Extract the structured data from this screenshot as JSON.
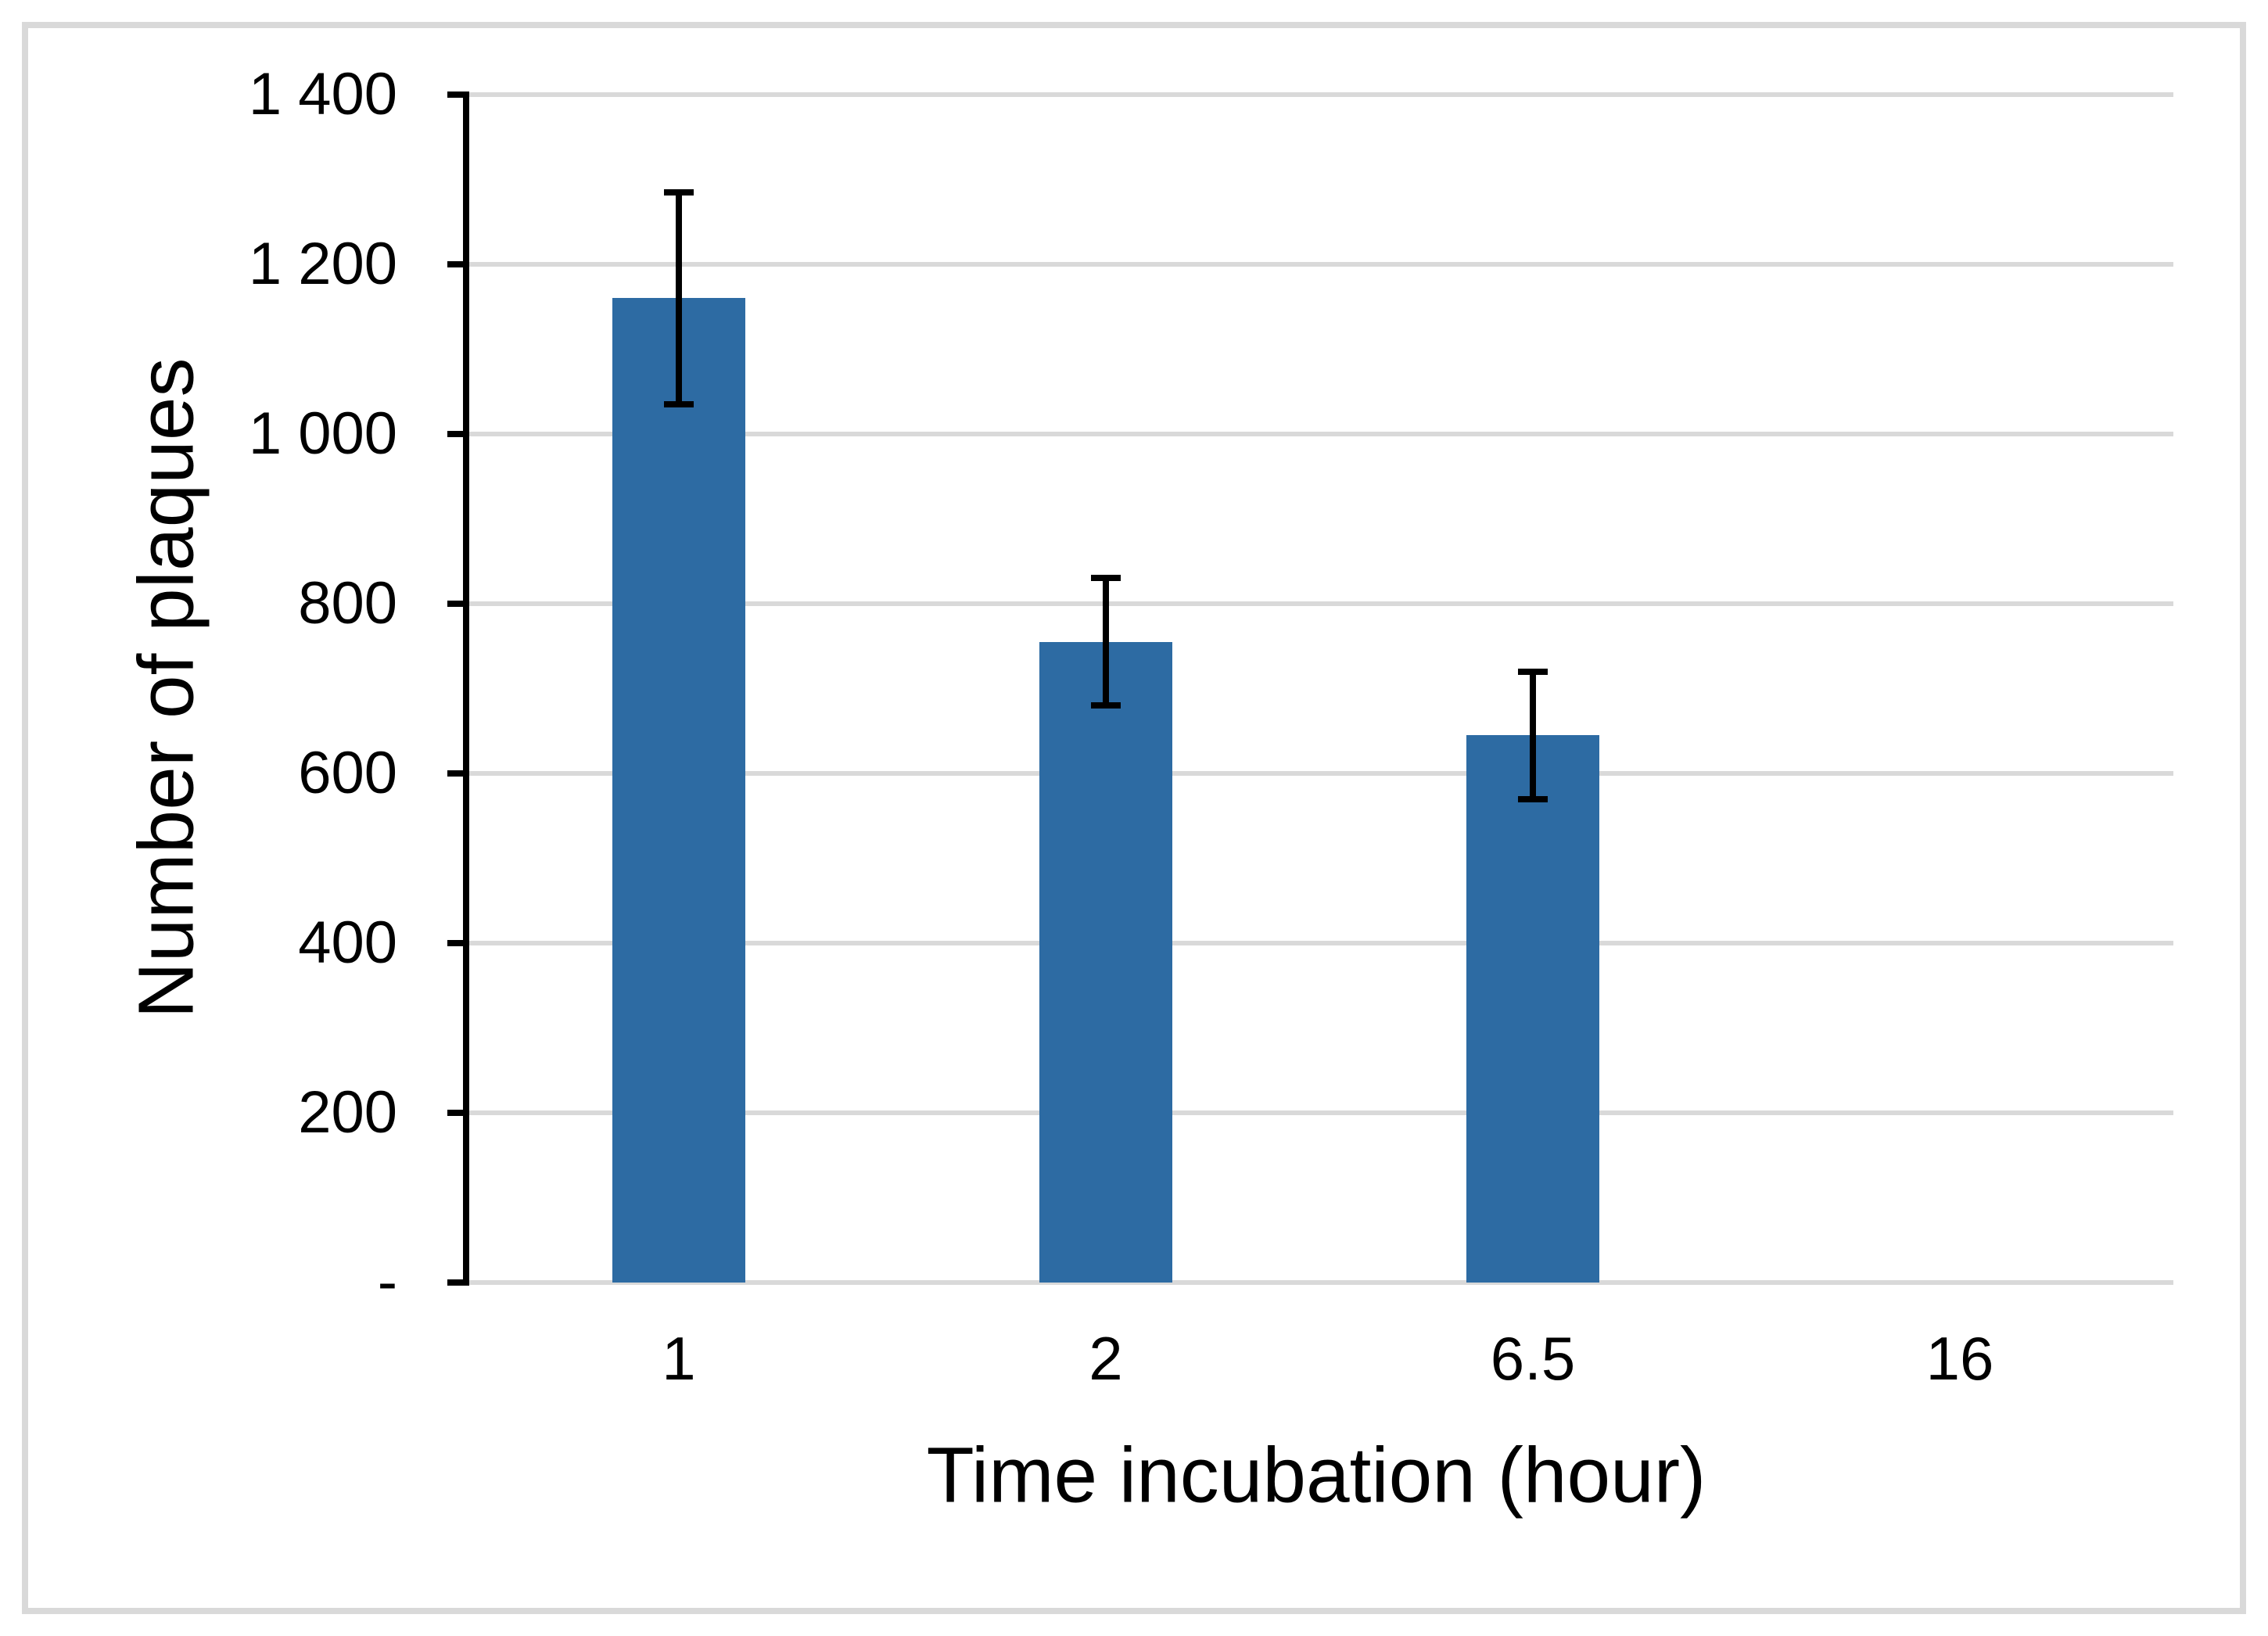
{
  "figure": {
    "background": "#FFFFFF",
    "frame_color": "#D9D9D9"
  },
  "chart_data": {
    "type": "bar",
    "title": "",
    "xlabel": "Time incubation (hour)",
    "ylabel": "Number of plaques",
    "categories": [
      "1",
      "2",
      "6.5",
      "16"
    ],
    "values": [
      1160,
      755,
      645,
      0
    ],
    "error_high": [
      1285,
      830,
      720,
      null
    ],
    "error_low": [
      1035,
      680,
      570,
      null
    ],
    "ylim": [
      0,
      1400
    ],
    "ytick_values": [
      0,
      200,
      400,
      600,
      800,
      1000,
      1200,
      1400
    ],
    "ytick_labels": [
      "-",
      "200",
      "400",
      "600",
      "800",
      "1 000",
      "1 200",
      "1 400"
    ],
    "grid": true,
    "legend": "none",
    "bar_color": "#2D6BA3",
    "gridline_color": "#D9D9D9",
    "axis_color": "#000000",
    "text_color": "#000000"
  }
}
